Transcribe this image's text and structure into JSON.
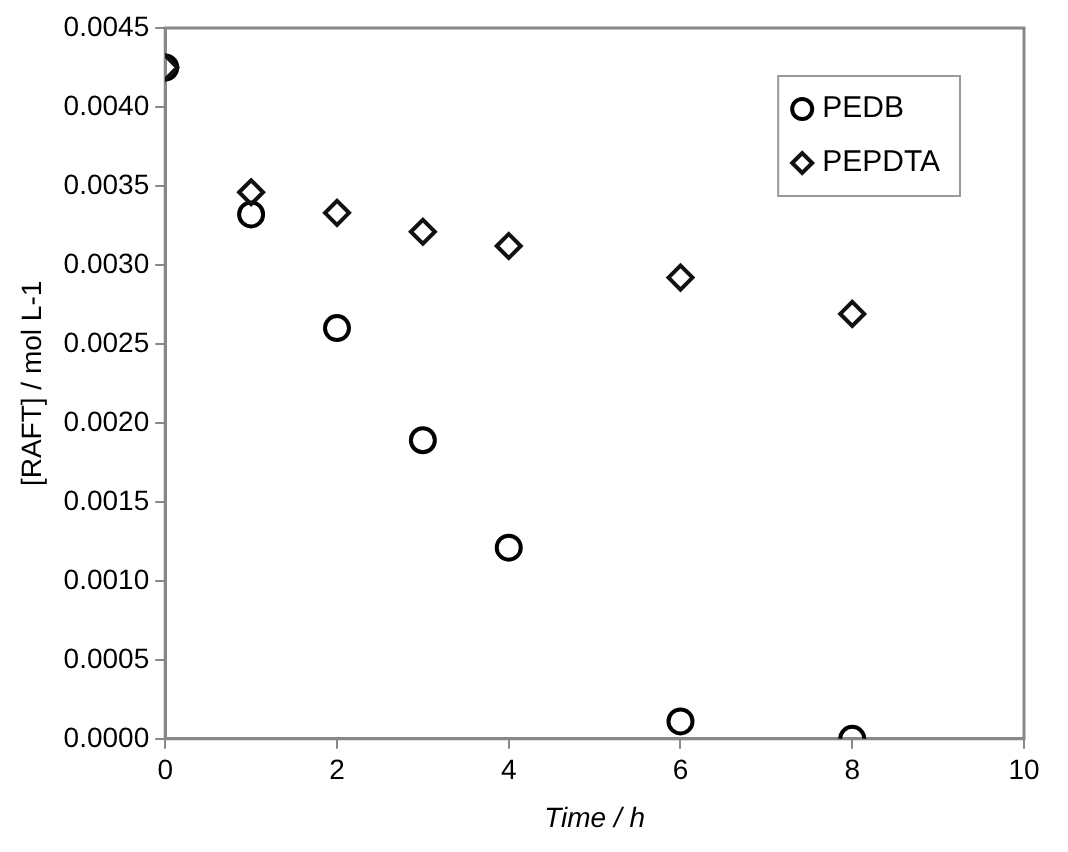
{
  "chart_data": {
    "type": "scatter",
    "xlabel": "Time / h",
    "ylabel": "[RAFT] / mol L-1",
    "x": [
      0,
      1,
      2,
      3,
      4,
      6,
      8
    ],
    "series": [
      {
        "name": "PEDB",
        "color": "#000000",
        "marker": "circle",
        "values": [
          0.00425,
          0.00332,
          0.0026,
          0.00189,
          0.00121,
          0.00011,
          0.0
        ]
      },
      {
        "name": "PEPDTA",
        "color": "#111111",
        "marker": "diamond",
        "values": [
          0.00425,
          0.00346,
          0.00333,
          0.00321,
          0.00312,
          0.00292,
          0.00269
        ]
      }
    ],
    "xlim": [
      0,
      10
    ],
    "xticks": [
      0,
      2,
      4,
      6,
      8,
      10
    ],
    "ylim": [
      0,
      0.0045
    ],
    "yticks": [
      {
        "value": 0,
        "label": "0.0000"
      },
      {
        "value": 0.0005,
        "label": "0.0005"
      },
      {
        "value": 0.001,
        "label": "0.0010"
      },
      {
        "value": 0.0015,
        "label": "0.0015"
      },
      {
        "value": 0.002,
        "label": "0.0020"
      },
      {
        "value": 0.0025,
        "label": "0.0025"
      },
      {
        "value": 0.003,
        "label": "0.0030"
      },
      {
        "value": 0.0035,
        "label": "0.0035"
      },
      {
        "value": 0.004,
        "label": "0.0040"
      },
      {
        "value": 0.0045,
        "label": "0.0045"
      }
    ],
    "grid": false,
    "legend": "top right"
  }
}
